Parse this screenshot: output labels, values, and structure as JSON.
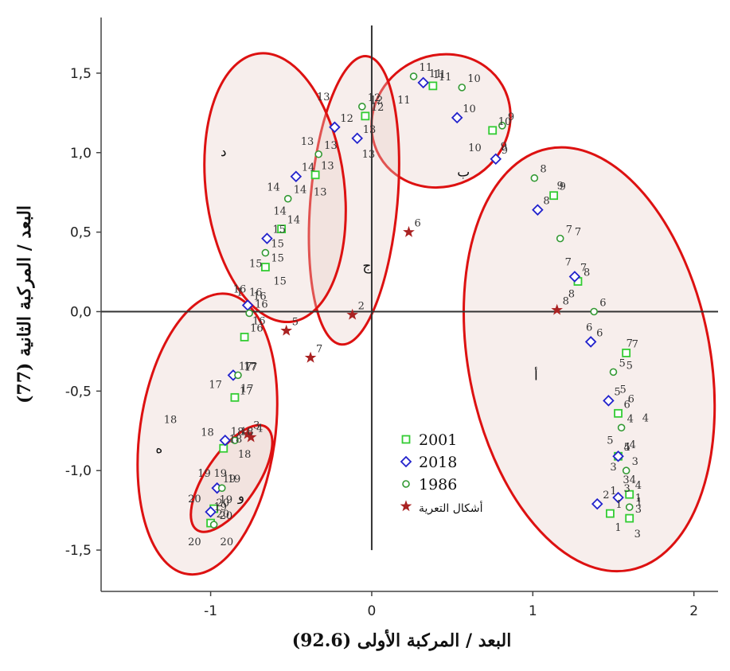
{
  "chart_data": {
    "type": "scatter",
    "xlabel": "البعد / المركبة الأولى (92.6)",
    "ylabel": "البعد / المركبة الثانية (77)",
    "xlim": [
      -1.68,
      2.15
    ],
    "ylim": [
      -1.76,
      1.85
    ],
    "xticks": [
      -1,
      0,
      1,
      2
    ],
    "xtick_labels": [
      "-1",
      "0",
      "1",
      "2"
    ],
    "yticks": [
      1.5,
      1.0,
      0.5,
      0.0,
      -0.5,
      -1.0,
      -1.5
    ],
    "ytick_labels": [
      "1,5",
      "1,0",
      "0,5",
      "0,0",
      "-0,5",
      "-1,0",
      "-1,5"
    ],
    "reference_lines": {
      "x": 0,
      "y": 0
    },
    "legend": {
      "placement": "center-bottom",
      "entries": [
        {
          "label": "2001",
          "marker": "square",
          "color": "#33cc33"
        },
        {
          "label": "2018",
          "marker": "diamond",
          "color": "#2222cc"
        },
        {
          "label": "1986",
          "marker": "circle",
          "color": "#339933"
        },
        {
          "label": "أشكال التعرية",
          "marker": "star",
          "color": "#aa2222"
        }
      ]
    },
    "series": [
      {
        "name": "2001",
        "marker": "square",
        "color": "#33cc33",
        "points": [
          {
            "x": 0.38,
            "y": 1.42,
            "label": "11"
          },
          {
            "x": -0.04,
            "y": 1.23,
            "label": "12"
          },
          {
            "x": 0.75,
            "y": 1.14,
            "label": "10"
          },
          {
            "x": -0.35,
            "y": 0.86,
            "label": "13"
          },
          {
            "x": 1.13,
            "y": 0.73,
            "label": "9"
          },
          {
            "x": -0.56,
            "y": 0.52,
            "label": "14"
          },
          {
            "x": 1.28,
            "y": 0.19,
            "label": "8"
          },
          {
            "x": -0.66,
            "y": 0.28,
            "label": "15"
          },
          {
            "x": -0.79,
            "y": -0.16,
            "label": "16"
          },
          {
            "x": 1.58,
            "y": -0.26,
            "label": "7"
          },
          {
            "x": -0.85,
            "y": -0.54,
            "label": "17"
          },
          {
            "x": 1.53,
            "y": -0.64,
            "label": "6"
          },
          {
            "x": -0.92,
            "y": -0.86,
            "label": "18"
          },
          {
            "x": 1.53,
            "y": -0.91,
            "label": "5"
          },
          {
            "x": -0.98,
            "y": -1.24,
            "label": "19"
          },
          {
            "x": 1.6,
            "y": -1.15,
            "label": "4"
          },
          {
            "x": -1.0,
            "y": -1.33,
            "label": "20"
          },
          {
            "x": 1.6,
            "y": -1.3,
            "label": "3"
          },
          {
            "x": 1.48,
            "y": -1.27,
            "label": "1"
          }
        ]
      },
      {
        "name": "2018",
        "marker": "diamond",
        "color": "#2222cc",
        "points": [
          {
            "x": 0.32,
            "y": 1.44,
            "label": "11"
          },
          {
            "x": -0.23,
            "y": 1.16,
            "label": "12"
          },
          {
            "x": 0.53,
            "y": 1.22,
            "label": "10"
          },
          {
            "x": -0.09,
            "y": 1.09,
            "label": "13"
          },
          {
            "x": 0.77,
            "y": 0.96,
            "label": "9"
          },
          {
            "x": -0.47,
            "y": 0.85,
            "label": "14"
          },
          {
            "x": 1.03,
            "y": 0.64,
            "label": "8"
          },
          {
            "x": -0.65,
            "y": 0.46,
            "label": "15"
          },
          {
            "x": 1.26,
            "y": 0.22,
            "label": "7"
          },
          {
            "x": -0.77,
            "y": 0.04,
            "label": "16"
          },
          {
            "x": 1.36,
            "y": -0.19,
            "label": "6"
          },
          {
            "x": -0.86,
            "y": -0.4,
            "label": "17"
          },
          {
            "x": 1.47,
            "y": -0.56,
            "label": "5"
          },
          {
            "x": -0.91,
            "y": -0.81,
            "label": "18"
          },
          {
            "x": 1.53,
            "y": -0.91,
            "label": "4"
          },
          {
            "x": -0.96,
            "y": -1.11,
            "label": "19"
          },
          {
            "x": 1.53,
            "y": -1.17,
            "label": "3"
          },
          {
            "x": -1.0,
            "y": -1.26,
            "label": "20"
          },
          {
            "x": 1.4,
            "y": -1.21,
            "label": "2"
          }
        ]
      },
      {
        "name": "1986",
        "marker": "circle",
        "color": "#339933",
        "points": [
          {
            "x": 0.26,
            "y": 1.48,
            "label": "11"
          },
          {
            "x": -0.06,
            "y": 1.29,
            "label": "12"
          },
          {
            "x": 0.56,
            "y": 1.41,
            "label": "10"
          },
          {
            "x": -0.33,
            "y": 0.99,
            "label": "13"
          },
          {
            "x": 0.81,
            "y": 1.17,
            "label": "9"
          },
          {
            "x": -0.52,
            "y": 0.71,
            "label": "14"
          },
          {
            "x": 1.01,
            "y": 0.84,
            "label": "8"
          },
          {
            "x": -0.66,
            "y": 0.37,
            "label": "15"
          },
          {
            "x": 1.17,
            "y": 0.46,
            "label": "7"
          },
          {
            "x": -0.76,
            "y": -0.01,
            "label": "16"
          },
          {
            "x": 1.38,
            "y": 0.0,
            "label": "6"
          },
          {
            "x": -0.83,
            "y": -0.4,
            "label": "17"
          },
          {
            "x": 1.5,
            "y": -0.38,
            "label": "5"
          },
          {
            "x": -0.85,
            "y": -0.81,
            "label": "18"
          },
          {
            "x": 1.55,
            "y": -0.73,
            "label": "4"
          },
          {
            "x": -0.93,
            "y": -1.11,
            "label": "19"
          },
          {
            "x": 1.58,
            "y": -1.0,
            "label": "3"
          },
          {
            "x": -0.98,
            "y": -1.34,
            "label": "20"
          },
          {
            "x": 1.6,
            "y": -1.23,
            "label": "1"
          }
        ]
      },
      {
        "name": "أشكال التعرية",
        "marker": "star",
        "color": "#aa2222",
        "points": [
          {
            "x": 0.23,
            "y": 0.5,
            "label": "6"
          },
          {
            "x": 1.15,
            "y": 0.01,
            "label": "8"
          },
          {
            "x": -0.12,
            "y": -0.02,
            "label": "2"
          },
          {
            "x": -0.53,
            "y": -0.12,
            "label": "5"
          },
          {
            "x": -0.38,
            "y": -0.29,
            "label": "7"
          },
          {
            "x": -0.77,
            "y": -0.77,
            "label": "3"
          },
          {
            "x": -0.75,
            "y": -0.79,
            "label": "4"
          }
        ]
      }
    ],
    "extra_labels": [
      {
        "x": 0.03,
        "y": 1.31,
        "text": "12"
      },
      {
        "x": 0.2,
        "y": 1.31,
        "text": "11"
      },
      {
        "x": 0.42,
        "y": 1.47,
        "text": "11"
      },
      {
        "x": -0.3,
        "y": 1.33,
        "text": "13"
      },
      {
        "x": -0.02,
        "y": 0.97,
        "text": "13"
      },
      {
        "x": -0.4,
        "y": 1.05,
        "text": "13"
      },
      {
        "x": -0.32,
        "y": 0.73,
        "text": "13"
      },
      {
        "x": 0.64,
        "y": 1.01,
        "text": "10"
      },
      {
        "x": 0.82,
        "y": 1.02,
        "text": "9"
      },
      {
        "x": -0.57,
        "y": 0.61,
        "text": "14"
      },
      {
        "x": -0.61,
        "y": 0.76,
        "text": "14"
      },
      {
        "x": 1.17,
        "y": 0.77,
        "text": "9"
      },
      {
        "x": -0.57,
        "y": 0.17,
        "text": "15"
      },
      {
        "x": -0.72,
        "y": 0.28,
        "text": "15"
      },
      {
        "x": 1.28,
        "y": 0.48,
        "text": "7"
      },
      {
        "x": -0.82,
        "y": 0.12,
        "text": "16"
      },
      {
        "x": -0.72,
        "y": 0.1,
        "text": "16"
      },
      {
        "x": -0.82,
        "y": 0.1,
        "text": "1"
      },
      {
        "x": 1.22,
        "y": 0.29,
        "text": "7"
      },
      {
        "x": -0.7,
        "y": -0.08,
        "text": "16"
      },
      {
        "x": 1.24,
        "y": 0.09,
        "text": "8"
      },
      {
        "x": -0.75,
        "y": -0.37,
        "text": "17"
      },
      {
        "x": -0.97,
        "y": -0.48,
        "text": "17"
      },
      {
        "x": -0.78,
        "y": -0.52,
        "text": "17"
      },
      {
        "x": 1.35,
        "y": -0.12,
        "text": "6"
      },
      {
        "x": 1.6,
        "y": -0.22,
        "text": "7"
      },
      {
        "x": 1.6,
        "y": -0.36,
        "text": "5"
      },
      {
        "x": -1.25,
        "y": -0.7,
        "text": "18"
      },
      {
        "x": -1.02,
        "y": -0.78,
        "text": "18"
      },
      {
        "x": -0.79,
        "y": -0.92,
        "text": "18"
      },
      {
        "x": 1.56,
        "y": -0.51,
        "text": "5"
      },
      {
        "x": 1.61,
        "y": -0.57,
        "text": "6"
      },
      {
        "x": 1.7,
        "y": -0.69,
        "text": "4"
      },
      {
        "x": 1.48,
        "y": -0.83,
        "text": "5"
      },
      {
        "x": 1.62,
        "y": -0.86,
        "text": "4"
      },
      {
        "x": -1.04,
        "y": -1.04,
        "text": "19"
      },
      {
        "x": -0.94,
        "y": -1.04,
        "text": "19"
      },
      {
        "x": -0.94,
        "y": -1.25,
        "text": "19"
      },
      {
        "x": -1.1,
        "y": -1.2,
        "text": "20"
      },
      {
        "x": 1.5,
        "y": -1.0,
        "text": "3"
      },
      {
        "x": 1.6,
        "y": -1.08,
        "text": "34"
      },
      {
        "x": 1.5,
        "y": -1.15,
        "text": "1"
      },
      {
        "x": 1.66,
        "y": -1.22,
        "text": "1"
      },
      {
        "x": 1.53,
        "y": -1.38,
        "text": "1"
      },
      {
        "x": 1.65,
        "y": -1.42,
        "text": "3"
      },
      {
        "x": -1.1,
        "y": -1.47,
        "text": "20"
      },
      {
        "x": -0.9,
        "y": -1.47,
        "text": "20"
      }
    ],
    "regions": [
      {
        "label": "أ",
        "cx": 1.35,
        "cy": -0.3,
        "rx": 0.75,
        "ry": 1.35,
        "rotate": -11,
        "label_x": 1.02,
        "label_y": -0.43
      },
      {
        "label": "ب",
        "cx": 0.43,
        "cy": 1.2,
        "rx": 0.44,
        "ry": 0.41,
        "rotate": -30,
        "label_x": 0.57,
        "label_y": 0.85
      },
      {
        "label": "ج",
        "cx": -0.11,
        "cy": 0.7,
        "rx": 0.27,
        "ry": 0.91,
        "rotate": 5,
        "label_x": -0.03,
        "label_y": 0.26
      },
      {
        "label": "د",
        "cx": -0.6,
        "cy": 0.78,
        "rx": 0.43,
        "ry": 0.85,
        "rotate": -7,
        "label_x": -0.92,
        "label_y": 0.98
      },
      {
        "label": "ه",
        "cx": -1.02,
        "cy": -0.77,
        "rx": 0.42,
        "ry": 0.89,
        "rotate": 8,
        "label_x": -1.32,
        "label_y": -0.89
      },
      {
        "label": "و",
        "cx": -0.87,
        "cy": -1.05,
        "rx": 0.16,
        "ry": 0.39,
        "rotate": 34,
        "label_x": -0.81,
        "label_y": -1.19
      }
    ],
    "grid": false
  }
}
